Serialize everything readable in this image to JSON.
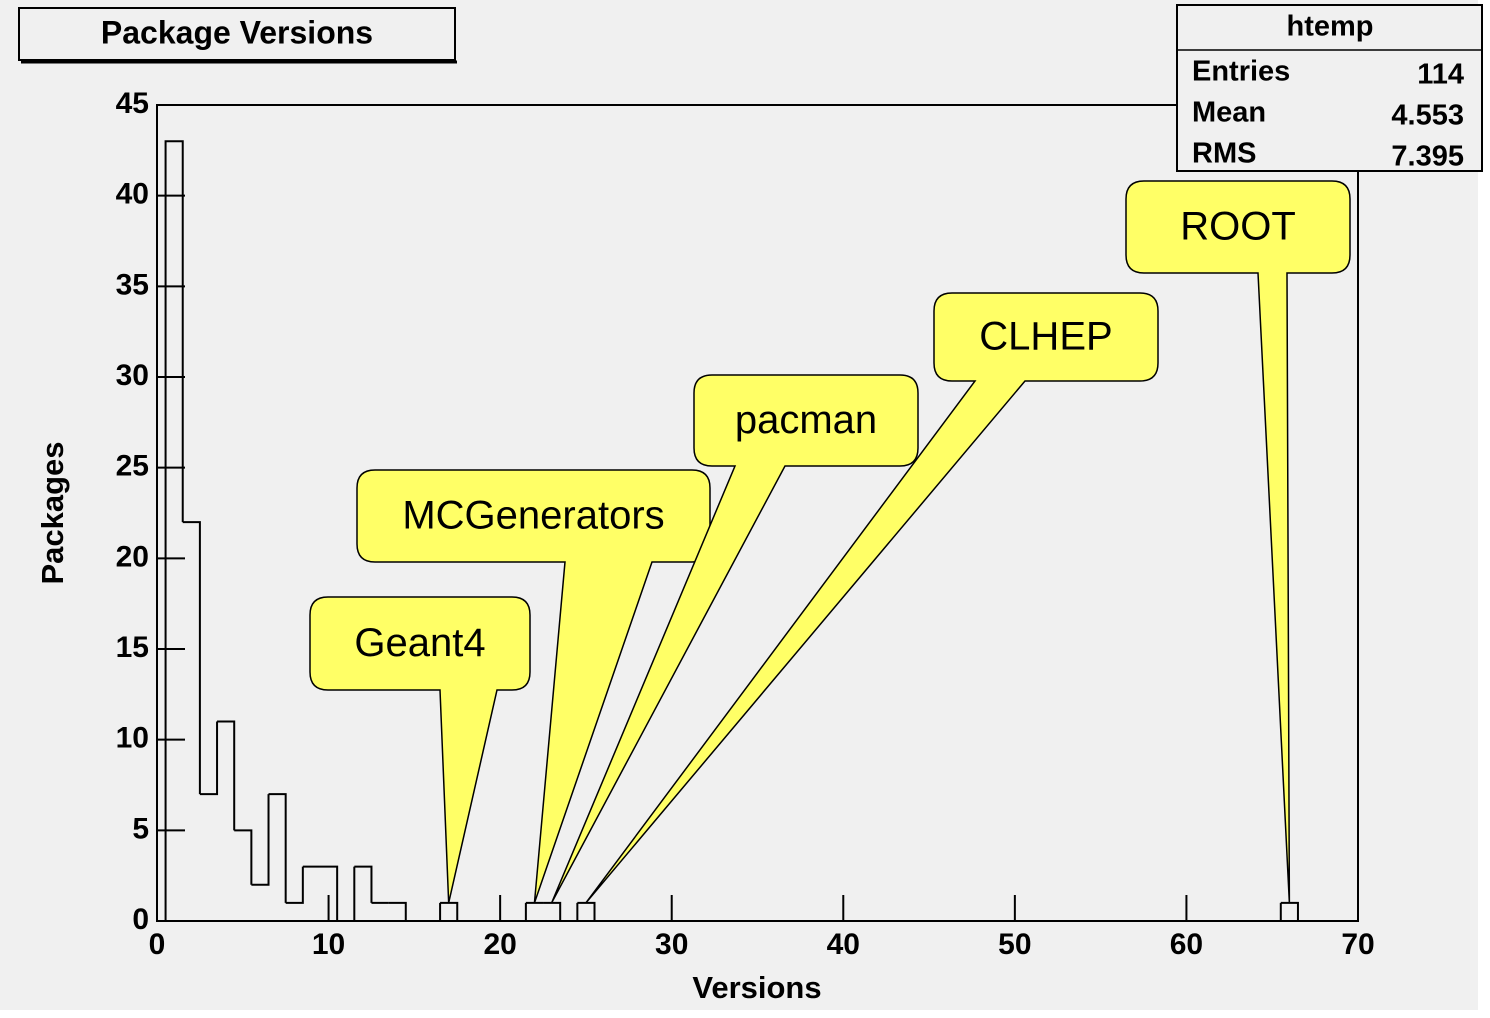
{
  "chart_data": {
    "type": "histogram",
    "title": "Package Versions",
    "x_label": "Versions",
    "y_label": "Packages",
    "bins": [
      0.5,
      1.5,
      2.5,
      3.5,
      4.5,
      5.5,
      6.5,
      7.5,
      8.5,
      9.5,
      10.5,
      11.5,
      12.5,
      13.5,
      14.5,
      15.5,
      16.5,
      17.5,
      18.5,
      19.5,
      20.5,
      21.5,
      22.5,
      23.5,
      24.5,
      25.5,
      26.5,
      27.5,
      28.5,
      29.5,
      30.5,
      31.5,
      32.5,
      33.5,
      34.5,
      35.5,
      36.5,
      37.5,
      38.5,
      39.5,
      40.5,
      41.5,
      42.5,
      43.5,
      44.5,
      45.5,
      46.5,
      47.5,
      48.5,
      49.5,
      50.5,
      51.5,
      52.5,
      53.5,
      54.5,
      55.5,
      56.5,
      57.5,
      58.5,
      59.5,
      60.5,
      61.5,
      62.5,
      63.5,
      64.5,
      65.5,
      66.5
    ],
    "values": [
      43,
      22,
      7,
      11,
      5,
      2,
      7,
      1,
      3,
      3,
      0,
      3,
      1,
      1,
      0,
      0,
      1,
      0,
      0,
      0,
      0,
      1,
      1,
      0,
      1,
      0,
      0,
      0,
      0,
      0,
      0,
      0,
      0,
      0,
      0,
      0,
      0,
      0,
      0,
      0,
      0,
      0,
      0,
      0,
      0,
      0,
      0,
      0,
      0,
      0,
      0,
      0,
      0,
      0,
      0,
      0,
      0,
      0,
      0,
      0,
      0,
      0,
      0,
      0,
      0,
      1
    ],
    "color": "#000000",
    "xlim": [
      0,
      70
    ],
    "xticks": [
      0,
      10,
      20,
      30,
      40,
      50,
      60,
      70
    ],
    "ylim": [
      0,
      45
    ],
    "yticks": [
      0,
      5,
      10,
      15,
      20,
      25,
      30,
      35,
      40,
      45
    ],
    "annotations": [
      "Geant4",
      "MCGenerators",
      "pacman",
      "CLHEP",
      "ROOT"
    ],
    "annotation_color": "#ffff66",
    "stats": {
      "title": "htemp",
      "rows": [
        {
          "label": "Entries",
          "value": 114
        },
        {
          "label": "Mean",
          "value": 4.553
        },
        {
          "label": "RMS",
          "value": 7.395
        }
      ]
    }
  }
}
